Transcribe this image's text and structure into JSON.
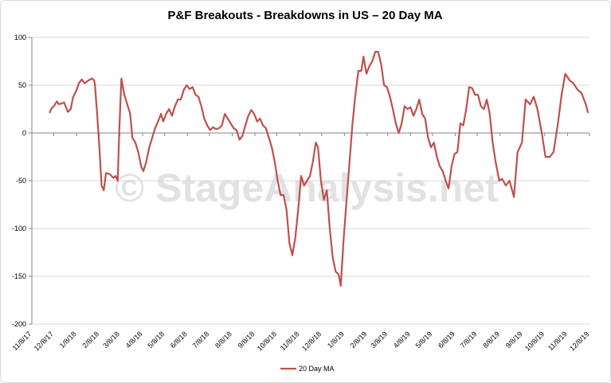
{
  "chart_data": {
    "type": "line",
    "title": "P&F Breakouts - Breakdowns in US – 20 Day MA",
    "watermark": "© StageAnalysis.net",
    "x": [
      "2017-12-02",
      "2017-12-05",
      "2017-12-08",
      "2017-12-12",
      "2017-12-15",
      "2017-12-19",
      "2017-12-22",
      "2017-12-27",
      "2017-12-31",
      "2018-01-03",
      "2018-01-08",
      "2018-01-11",
      "2018-01-15",
      "2018-01-19",
      "2018-01-24",
      "2018-01-29",
      "2018-02-01",
      "2018-02-02",
      "2018-02-05",
      "2018-02-08",
      "2018-02-11",
      "2018-02-14",
      "2018-02-17",
      "2018-02-22",
      "2018-02-27",
      "2018-03-02",
      "2018-03-05",
      "2018-03-07",
      "2018-03-10",
      "2018-03-14",
      "2018-03-18",
      "2018-03-22",
      "2018-03-25",
      "2018-03-29",
      "2018-04-02",
      "2018-04-06",
      "2018-04-09",
      "2018-04-13",
      "2018-04-17",
      "2018-04-21",
      "2018-04-25",
      "2018-04-29",
      "2018-05-03",
      "2018-05-06",
      "2018-05-10",
      "2018-05-14",
      "2018-05-18",
      "2018-05-22",
      "2018-05-26",
      "2018-05-30",
      "2018-06-03",
      "2018-06-07",
      "2018-06-11",
      "2018-06-15",
      "2018-06-19",
      "2018-06-23",
      "2018-06-27",
      "2018-07-01",
      "2018-07-05",
      "2018-07-09",
      "2018-07-13",
      "2018-07-17",
      "2018-07-21",
      "2018-07-25",
      "2018-07-29",
      "2018-08-02",
      "2018-08-06",
      "2018-08-10",
      "2018-08-14",
      "2018-08-18",
      "2018-08-22",
      "2018-08-26",
      "2018-08-30",
      "2018-09-03",
      "2018-09-07",
      "2018-09-11",
      "2018-09-15",
      "2018-09-19",
      "2018-09-23",
      "2018-09-27",
      "2018-10-01",
      "2018-10-05",
      "2018-10-09",
      "2018-10-13",
      "2018-10-17",
      "2018-10-21",
      "2018-10-25",
      "2018-10-29",
      "2018-11-02",
      "2018-11-06",
      "2018-11-10",
      "2018-11-14",
      "2018-11-18",
      "2018-11-22",
      "2018-11-26",
      "2018-11-30",
      "2018-12-03",
      "2018-12-07",
      "2018-12-11",
      "2018-12-15",
      "2018-12-19",
      "2018-12-23",
      "2018-12-27",
      "2018-12-31",
      "2019-01-03",
      "2019-01-07",
      "2019-01-11",
      "2019-01-15",
      "2019-01-19",
      "2019-01-23",
      "2019-01-27",
      "2019-01-31",
      "2019-02-03",
      "2019-02-07",
      "2019-02-11",
      "2019-02-15",
      "2019-02-19",
      "2019-02-23",
      "2019-02-27",
      "2019-03-03",
      "2019-03-07",
      "2019-03-11",
      "2019-03-15",
      "2019-03-19",
      "2019-03-23",
      "2019-03-27",
      "2019-03-31",
      "2019-04-04",
      "2019-04-08",
      "2019-04-12",
      "2019-04-16",
      "2019-04-20",
      "2019-04-24",
      "2019-04-28",
      "2019-05-02",
      "2019-05-06",
      "2019-05-10",
      "2019-05-14",
      "2019-05-18",
      "2019-05-22",
      "2019-05-26",
      "2019-05-30",
      "2019-06-03",
      "2019-06-07",
      "2019-06-11",
      "2019-06-15",
      "2019-06-19",
      "2019-06-23",
      "2019-06-27",
      "2019-07-01",
      "2019-07-05",
      "2019-07-09",
      "2019-07-13",
      "2019-07-17",
      "2019-07-21",
      "2019-07-25",
      "2019-07-29",
      "2019-08-02",
      "2019-08-07",
      "2019-08-11",
      "2019-08-16",
      "2019-08-21",
      "2019-08-27",
      "2019-09-01",
      "2019-09-07",
      "2019-09-12",
      "2019-09-18",
      "2019-09-23",
      "2019-09-28",
      "2019-10-04",
      "2019-10-09",
      "2019-10-15",
      "2019-10-20",
      "2019-10-26",
      "2019-10-31",
      "2019-11-05",
      "2019-11-11",
      "2019-11-16",
      "2019-11-22",
      "2019-11-27",
      "2019-12-03",
      "2019-12-06"
    ],
    "series": [
      {
        "name": "20 Day MA",
        "color": "#c0504d",
        "values": [
          21,
          26,
          28,
          33,
          30,
          31,
          32,
          22,
          25,
          37,
          45,
          52,
          56,
          52,
          55,
          57,
          55,
          50,
          20,
          -15,
          -55,
          -60,
          -42,
          -43,
          -47,
          -45,
          -50,
          0,
          57,
          40,
          30,
          20,
          -5,
          -10,
          -20,
          -35,
          -40,
          -30,
          -15,
          -5,
          5,
          12,
          20,
          12,
          20,
          25,
          18,
          28,
          35,
          35,
          45,
          50,
          46,
          48,
          40,
          38,
          28,
          15,
          8,
          3,
          6,
          4,
          5,
          8,
          20,
          15,
          10,
          5,
          3,
          -7,
          -3,
          8,
          18,
          24,
          20,
          12,
          15,
          8,
          5,
          -5,
          -15,
          -30,
          -50,
          -65,
          -65,
          -80,
          -115,
          -128,
          -110,
          -80,
          -45,
          -55,
          -50,
          -45,
          -30,
          -10,
          -15,
          -50,
          -70,
          -60,
          -100,
          -130,
          -145,
          -148,
          -160,
          -110,
          -70,
          -30,
          10,
          40,
          65,
          65,
          80,
          62,
          70,
          75,
          85,
          85,
          72,
          50,
          48,
          38,
          25,
          10,
          0,
          10,
          28,
          25,
          27,
          18,
          25,
          35,
          20,
          15,
          -5,
          -15,
          -10,
          -25,
          -35,
          -40,
          -50,
          -58,
          -35,
          -22,
          -20,
          10,
          8,
          25,
          48,
          47,
          40,
          40,
          28,
          25,
          35,
          20,
          -10,
          -30,
          -50,
          -48,
          -55,
          -50,
          -67,
          -20,
          -10,
          35,
          30,
          38,
          25,
          0,
          -25,
          -25,
          -20,
          10,
          40,
          62,
          55,
          52,
          45,
          42,
          30,
          21
        ]
      }
    ],
    "xlim": [
      "2017-11-08",
      "2019-12-08"
    ],
    "xticks": [
      {
        "value": "2017-11-08",
        "label": "11/8/17"
      },
      {
        "value": "2017-12-08",
        "label": "12/8/17"
      },
      {
        "value": "2018-01-08",
        "label": "1/8/18"
      },
      {
        "value": "2018-02-08",
        "label": "2/8/18"
      },
      {
        "value": "2018-03-08",
        "label": "3/8/18"
      },
      {
        "value": "2018-04-08",
        "label": "4/8/18"
      },
      {
        "value": "2018-05-08",
        "label": "5/8/18"
      },
      {
        "value": "2018-06-08",
        "label": "6/8/18"
      },
      {
        "value": "2018-07-08",
        "label": "7/8/18"
      },
      {
        "value": "2018-08-08",
        "label": "8/8/18"
      },
      {
        "value": "2018-09-08",
        "label": "9/8/18"
      },
      {
        "value": "2018-10-08",
        "label": "10/8/18"
      },
      {
        "value": "2018-11-08",
        "label": "11/8/18"
      },
      {
        "value": "2018-12-08",
        "label": "12/8/18"
      },
      {
        "value": "2019-01-08",
        "label": "1/8/19"
      },
      {
        "value": "2019-02-08",
        "label": "2/8/19"
      },
      {
        "value": "2019-03-08",
        "label": "3/8/19"
      },
      {
        "value": "2019-04-08",
        "label": "4/8/19"
      },
      {
        "value": "2019-05-08",
        "label": "5/8/19"
      },
      {
        "value": "2019-06-08",
        "label": "6/8/19"
      },
      {
        "value": "2019-07-08",
        "label": "7/8/19"
      },
      {
        "value": "2019-08-08",
        "label": "8/8/19"
      },
      {
        "value": "2019-09-08",
        "label": "9/8/19"
      },
      {
        "value": "2019-10-08",
        "label": "10/8/19"
      },
      {
        "value": "2019-11-08",
        "label": "11/8/19"
      },
      {
        "value": "2019-12-08",
        "label": "12/8/19"
      }
    ],
    "ylim": [
      -200,
      100
    ],
    "yticks": [
      100,
      50,
      0,
      -50,
      -100,
      -150,
      -200
    ],
    "grid": true,
    "legend": "bottom"
  }
}
